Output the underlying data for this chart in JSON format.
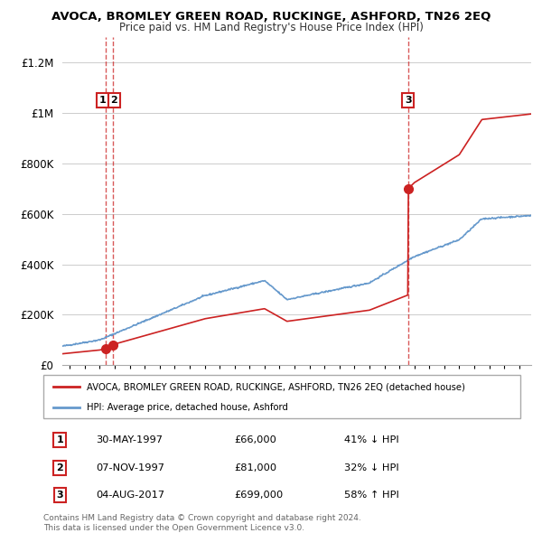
{
  "title": "AVOCA, BROMLEY GREEN ROAD, RUCKINGE, ASHFORD, TN26 2EQ",
  "subtitle": "Price paid vs. HM Land Registry's House Price Index (HPI)",
  "sales": [
    {
      "date_num": 1997.41,
      "price": 66000,
      "label": "1"
    },
    {
      "date_num": 1997.85,
      "price": 81000,
      "label": "2"
    },
    {
      "date_num": 2017.58,
      "price": 699000,
      "label": "3"
    }
  ],
  "sale_notes": [
    {
      "label": "1",
      "date_str": "30-MAY-1997",
      "price_str": "£66,000",
      "pct": "41% ↓ HPI"
    },
    {
      "label": "2",
      "date_str": "07-NOV-1997",
      "price_str": "£81,000",
      "pct": "32% ↓ HPI"
    },
    {
      "label": "3",
      "date_str": "04-AUG-2017",
      "price_str": "£699,000",
      "pct": "58% ↑ HPI"
    }
  ],
  "hpi_color": "#6699cc",
  "sale_color": "#cc2222",
  "ylim": [
    0,
    1300000
  ],
  "yticks": [
    0,
    200000,
    400000,
    600000,
    800000,
    1000000,
    1200000
  ],
  "ytick_labels": [
    "£0",
    "£200K",
    "£400K",
    "£600K",
    "£800K",
    "£1M",
    "£1.2M"
  ],
  "xlim_start": 1994.5,
  "xlim_end": 2025.8,
  "xticks": [
    1995,
    1996,
    1997,
    1998,
    1999,
    2000,
    2001,
    2002,
    2003,
    2004,
    2005,
    2006,
    2007,
    2008,
    2009,
    2010,
    2011,
    2012,
    2013,
    2014,
    2015,
    2016,
    2017,
    2018,
    2019,
    2020,
    2021,
    2022,
    2023,
    2024,
    2025
  ],
  "legend_line1": "AVOCA, BROMLEY GREEN ROAD, RUCKINGE, ASHFORD, TN26 2EQ (detached house)",
  "legend_line2": "HPI: Average price, detached house, Ashford",
  "footnote": "Contains HM Land Registry data © Crown copyright and database right 2024.\nThis data is licensed under the Open Government Licence v3.0."
}
